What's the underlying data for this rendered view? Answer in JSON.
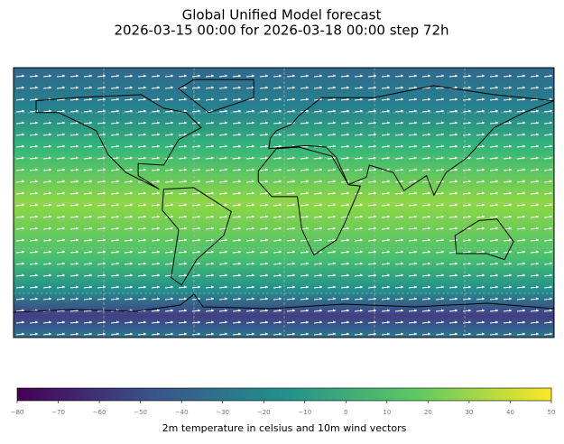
{
  "chart_data": {
    "type": "map",
    "title": "Global Unified Model forecast",
    "subtitle": "2026-03-15 00:00 for 2026-03-18 00:00 step 72h",
    "colorbar": {
      "label": "2m temperature in celsius and 10m wind vectors",
      "lim": [
        -80,
        50
      ],
      "ticks": [
        {
          "value": -80,
          "label": "−80"
        },
        {
          "value": -70,
          "label": "−70"
        },
        {
          "value": -60,
          "label": "−60"
        },
        {
          "value": -50,
          "label": "−50"
        },
        {
          "value": -40,
          "label": "−40"
        },
        {
          "value": -30,
          "label": "−30"
        },
        {
          "value": -20,
          "label": "−20"
        },
        {
          "value": -10,
          "label": "−10"
        },
        0,
        10,
        20,
        30,
        40,
        50
      ]
    }
  }
}
